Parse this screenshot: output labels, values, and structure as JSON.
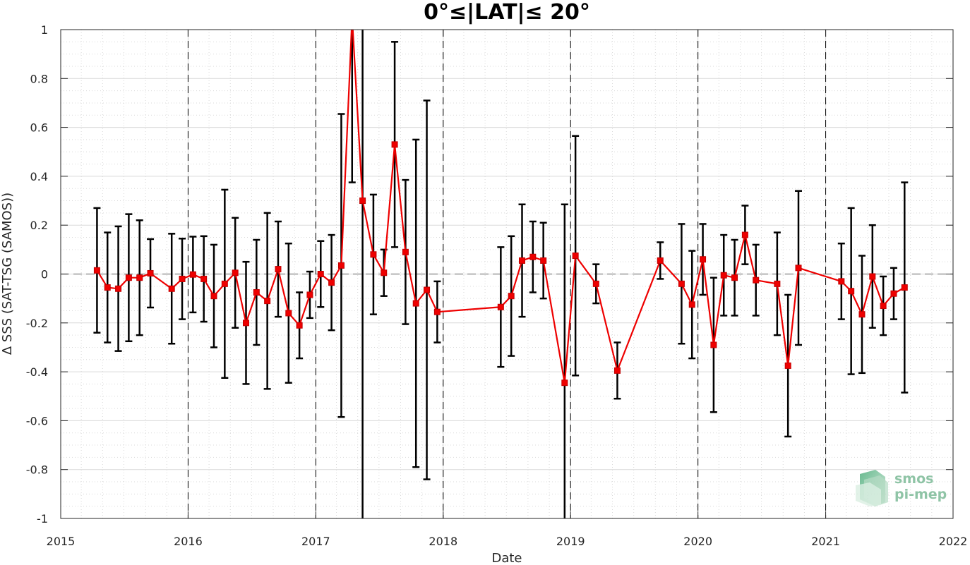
{
  "chart_data": {
    "type": "line",
    "title": "0°≤|LAT|≤ 20°",
    "xlabel": "Date",
    "ylabel": "Δ SSS (SAT-TSG (SAMOS))",
    "xlim": [
      "2015-01-01",
      "2022-01-01"
    ],
    "ylim": [
      -1,
      1
    ],
    "x_ticks": [
      "2015",
      "2016",
      "2017",
      "2018",
      "2019",
      "2020",
      "2021",
      "2022"
    ],
    "y_ticks": [
      "-1",
      "-0.8",
      "-0.6",
      "-0.4",
      "-0.2",
      "0",
      "0.2",
      "0.4",
      "0.6",
      "0.8",
      "1"
    ],
    "grid": true,
    "year_boundaries": [
      "2016-01-01",
      "2017-01-01",
      "2018-01-01",
      "2019-01-01",
      "2020-01-01",
      "2021-01-01"
    ],
    "zero_line": 0,
    "colors": {
      "line": "#ee0000",
      "errorbar": "#000000",
      "grid": "#d9d9d9"
    },
    "series": [
      {
        "points": [
          {
            "x": "2015-04-15",
            "y": 0.015,
            "err": 0.255
          },
          {
            "x": "2015-05-15",
            "y": -0.055,
            "err": 0.225
          },
          {
            "x": "2015-06-15",
            "y": -0.06,
            "err": 0.255
          },
          {
            "x": "2015-07-15",
            "y": -0.015,
            "err": 0.26
          },
          {
            "x": "2015-08-15",
            "y": -0.015,
            "err": 0.235
          },
          {
            "x": "2015-09-15",
            "y": 0.003,
            "err": 0.14
          },
          {
            "x": "2015-11-15",
            "y": -0.06,
            "err": 0.225
          },
          {
            "x": "2015-12-15",
            "y": -0.02,
            "err": 0.165
          },
          {
            "x": "2016-01-15",
            "y": -0.002,
            "err": 0.155
          },
          {
            "x": "2016-02-15",
            "y": -0.02,
            "err": 0.175
          },
          {
            "x": "2016-03-15",
            "y": -0.09,
            "err": 0.21
          },
          {
            "x": "2016-04-15",
            "y": -0.04,
            "err": 0.385
          },
          {
            "x": "2016-05-15",
            "y": 0.005,
            "err": 0.225
          },
          {
            "x": "2016-06-15",
            "y": -0.2,
            "err": 0.25
          },
          {
            "x": "2016-07-15",
            "y": -0.075,
            "err": 0.215
          },
          {
            "x": "2016-08-15",
            "y": -0.11,
            "err": 0.36
          },
          {
            "x": "2016-09-15",
            "y": 0.02,
            "err": 0.195
          },
          {
            "x": "2016-10-15",
            "y": -0.16,
            "err": 0.285
          },
          {
            "x": "2016-11-15",
            "y": -0.21,
            "err": 0.135
          },
          {
            "x": "2016-12-15",
            "y": -0.085,
            "err": 0.095
          },
          {
            "x": "2017-01-15",
            "y": 0.0,
            "err": 0.135
          },
          {
            "x": "2017-02-15",
            "y": -0.035,
            "err": 0.195
          },
          {
            "x": "2017-03-15",
            "y": 0.035,
            "err": 0.62
          },
          {
            "x": "2017-04-15",
            "y": 1.05,
            "err": 0.675
          },
          {
            "x": "2017-05-15",
            "y": 0.3,
            "err": 1.5
          },
          {
            "x": "2017-06-15",
            "y": 0.08,
            "err": 0.245
          },
          {
            "x": "2017-07-15",
            "y": 0.005,
            "err": 0.095
          },
          {
            "x": "2017-08-15",
            "y": 0.53,
            "err": 0.42
          },
          {
            "x": "2017-09-15",
            "y": 0.09,
            "err": 0.295
          },
          {
            "x": "2017-10-15",
            "y": -0.12,
            "err": 0.67
          },
          {
            "x": "2017-11-15",
            "y": -0.065,
            "err": 0.775
          },
          {
            "x": "2017-12-15",
            "y": -0.155,
            "err": 0.125
          },
          {
            "x": "2018-06-15",
            "y": -0.135,
            "err": 0.245
          },
          {
            "x": "2018-07-15",
            "y": -0.09,
            "err": 0.245
          },
          {
            "x": "2018-08-15",
            "y": 0.055,
            "err": 0.23
          },
          {
            "x": "2018-09-15",
            "y": 0.07,
            "err": 0.145
          },
          {
            "x": "2018-10-15",
            "y": 0.055,
            "err": 0.155
          },
          {
            "x": "2018-12-15",
            "y": -0.445,
            "err": 0.73
          },
          {
            "x": "2019-01-15",
            "y": 0.075,
            "err": 0.49
          },
          {
            "x": "2019-03-15",
            "y": -0.04,
            "err": 0.08
          },
          {
            "x": "2019-05-15",
            "y": -0.395,
            "err": 0.115
          },
          {
            "x": "2019-09-15",
            "y": 0.055,
            "err": 0.075
          },
          {
            "x": "2019-11-15",
            "y": -0.04,
            "err": 0.245
          },
          {
            "x": "2019-12-15",
            "y": -0.125,
            "err": 0.22
          },
          {
            "x": "2020-01-15",
            "y": 0.06,
            "err": 0.145
          },
          {
            "x": "2020-02-15",
            "y": -0.29,
            "err": 0.275
          },
          {
            "x": "2020-03-15",
            "y": -0.005,
            "err": 0.165
          },
          {
            "x": "2020-04-15",
            "y": -0.015,
            "err": 0.155
          },
          {
            "x": "2020-05-15",
            "y": 0.16,
            "err": 0.12
          },
          {
            "x": "2020-06-15",
            "y": -0.025,
            "err": 0.145
          },
          {
            "x": "2020-08-15",
            "y": -0.04,
            "err": 0.21
          },
          {
            "x": "2020-09-15",
            "y": -0.375,
            "err": 0.29
          },
          {
            "x": "2020-10-15",
            "y": 0.025,
            "err": 0.315
          },
          {
            "x": "2021-02-15",
            "y": -0.03,
            "err": 0.155
          },
          {
            "x": "2021-03-15",
            "y": -0.07,
            "err": 0.34
          },
          {
            "x": "2021-04-15",
            "y": -0.165,
            "err": 0.24
          },
          {
            "x": "2021-05-15",
            "y": -0.01,
            "err": 0.21
          },
          {
            "x": "2021-06-15",
            "y": -0.13,
            "err": 0.12
          },
          {
            "x": "2021-07-15",
            "y": -0.08,
            "err": 0.105
          },
          {
            "x": "2021-08-15",
            "y": -0.055,
            "err": 0.43
          }
        ]
      }
    ]
  },
  "logo": {
    "line1": "smos",
    "line2": "pi-mep"
  }
}
